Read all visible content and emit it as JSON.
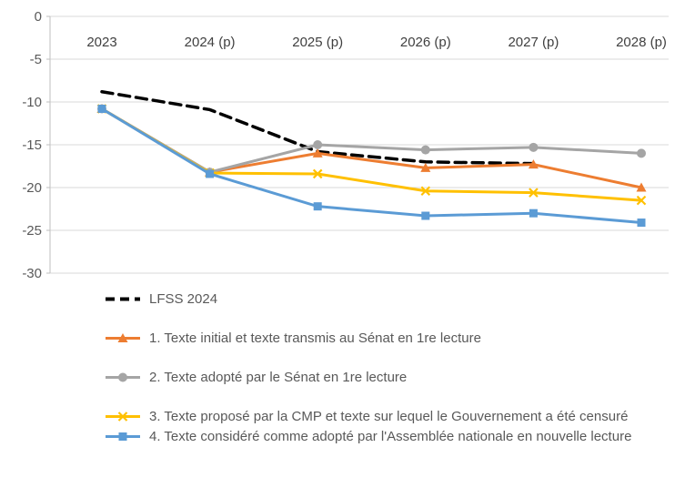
{
  "chart_data": {
    "type": "line",
    "title": "",
    "xlabel": "",
    "ylabel": "",
    "categories": [
      "2023",
      "2024 (p)",
      "2025 (p)",
      "2026 (p)",
      "2027 (p)",
      "2028 (p)"
    ],
    "yticks": [
      0,
      -5,
      -10,
      -15,
      -20,
      -25,
      -30
    ],
    "ylim": [
      -30,
      0
    ],
    "grid": true,
    "legend_position": "bottom-left",
    "series": [
      {
        "name": "LFSS 2024",
        "color": "#000000",
        "dash": "12 7",
        "marker": "none",
        "values": [
          -8.8,
          -10.9,
          -15.8,
          -17.0,
          -17.2,
          null
        ]
      },
      {
        "name": "1. Texte initial et texte transmis au Sénat en 1re lecture",
        "color": "#ED7D31",
        "dash": "",
        "marker": "triangle",
        "values": [
          -10.8,
          -18.2,
          -16.0,
          -17.7,
          -17.3,
          -20.0
        ]
      },
      {
        "name": "2. Texte adopté par le Sénat en 1re lecture",
        "color": "#A5A5A5",
        "dash": "",
        "marker": "circle",
        "values": [
          -10.8,
          -18.2,
          -15.0,
          -15.6,
          -15.3,
          -16.0
        ]
      },
      {
        "name": "3. Texte proposé par la CMP et texte sur lequel le Gouvernement a été censuré",
        "color": "#FFC000",
        "dash": "",
        "marker": "x",
        "values": [
          -10.8,
          -18.3,
          -18.4,
          -20.4,
          -20.6,
          -21.5
        ]
      },
      {
        "name": "4. Texte considéré comme adopté par l'Assemblée nationale en nouvelle lecture",
        "color": "#5B9BD5",
        "dash": "",
        "marker": "square",
        "values": [
          -10.8,
          -18.4,
          -22.2,
          -23.3,
          -23.0,
          -24.1
        ]
      }
    ],
    "colors": {
      "grid": "#D9D9D9",
      "axis": "#BFBFBF",
      "tick_label": "#595959",
      "category_label": "#404040",
      "legend_text": "#595959",
      "background": "#FFFFFF"
    }
  }
}
